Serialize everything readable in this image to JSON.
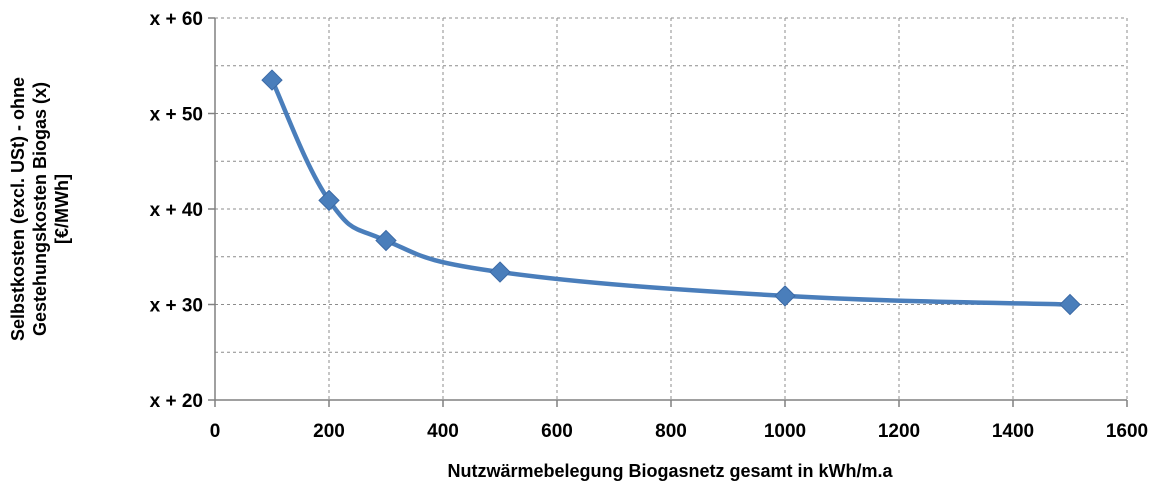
{
  "chart_data": {
    "type": "line",
    "title": "",
    "xlabel": "Nutzwärmebelegung Biogasnetz gesamt in kWh/m.a",
    "ylabel_lines": [
      "Selbstkosten (excl. USt) - ohne",
      "Gestehungskosten Biogas (x)",
      "[€/MWh]"
    ],
    "xlim": [
      0,
      1600
    ],
    "ylim": [
      20,
      60
    ],
    "x_ticks": [
      0,
      200,
      400,
      600,
      800,
      1000,
      1200,
      1400,
      1600
    ],
    "x_tick_labels": [
      "0",
      "200",
      "400",
      "600",
      "800",
      "1000",
      "1200",
      "1400",
      "1600"
    ],
    "y_ticks": [
      20,
      30,
      40,
      50,
      60
    ],
    "y_tick_labels": [
      "x + 20",
      "x + 30",
      "x + 40",
      "x + 50",
      "x + 60"
    ],
    "y_minor_grid": [
      25,
      35,
      45,
      55
    ],
    "grid": true,
    "legend": "none",
    "series": [
      {
        "x": [
          100,
          200,
          300,
          500,
          1000,
          1500
        ],
        "values": [
          53.5,
          40.9,
          36.7,
          33.4,
          30.9,
          30.0
        ],
        "color": "#4a7ebb",
        "marker": "diamond"
      }
    ]
  }
}
